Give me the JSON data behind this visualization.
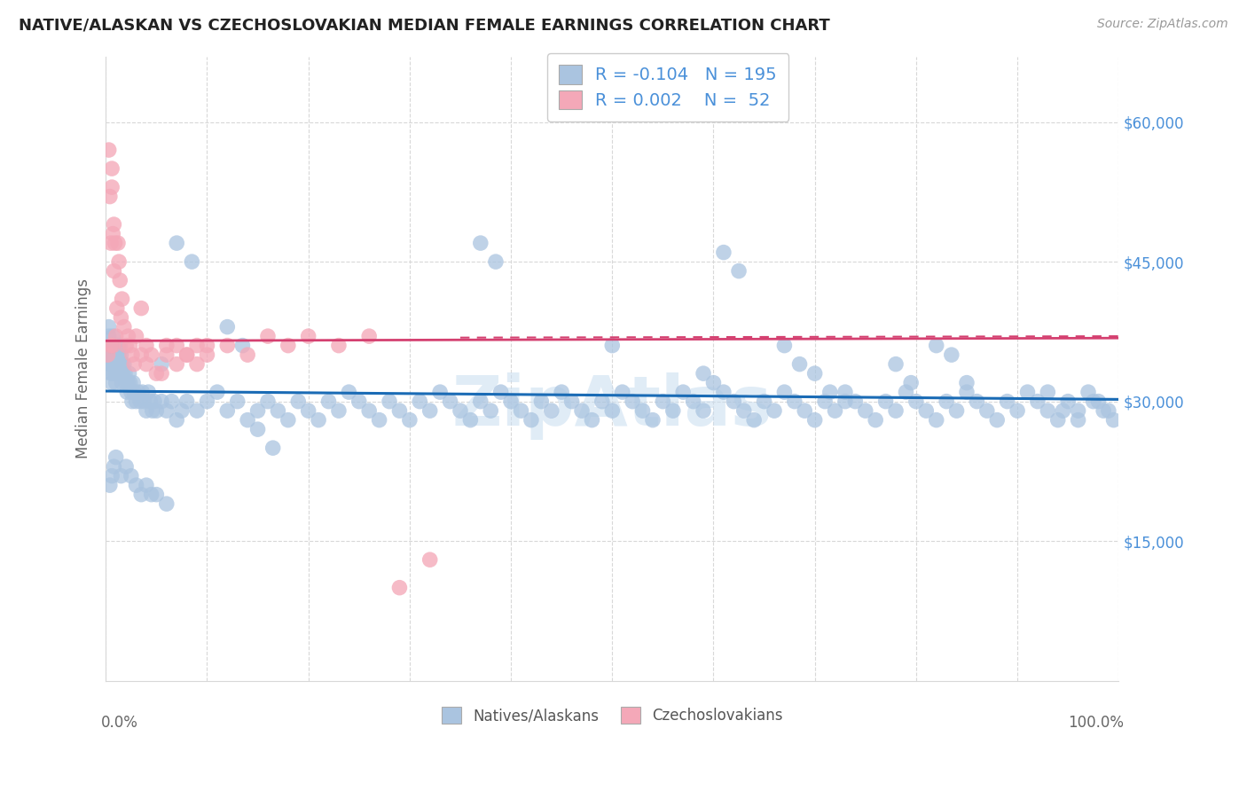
{
  "title": "NATIVE/ALASKAN VS CZECHOSLOVAKIAN MEDIAN FEMALE EARNINGS CORRELATION CHART",
  "source": "Source: ZipAtlas.com",
  "ylabel": "Median Female Earnings",
  "y_ticks": [
    15000,
    30000,
    45000,
    60000
  ],
  "y_tick_labels": [
    "$15,000",
    "$30,000",
    "$45,000",
    "$60,000"
  ],
  "y_min": 0,
  "y_max": 67000,
  "x_min": 0.0,
  "x_max": 1.0,
  "blue_R": "-0.104",
  "blue_N": "195",
  "pink_R": "0.002",
  "pink_N": "52",
  "blue_scatter_color": "#aac4e0",
  "pink_scatter_color": "#f4a8b8",
  "blue_line_color": "#1a6bb5",
  "pink_line_color": "#d44070",
  "legend_label_blue": "Natives/Alaskans",
  "legend_label_pink": "Czechoslovakians",
  "background_color": "#ffffff",
  "grid_color": "#d8d8d8",
  "title_color": "#222222",
  "axis_label_color": "#4a90d9",
  "watermark": "ZipAtlas",
  "watermark_color": "#c8ddf0",
  "title_fontsize": 13,
  "source_fontsize": 10,
  "tick_label_fontsize": 12,
  "legend_fontsize": 14,
  "blue_x": [
    0.003,
    0.003,
    0.004,
    0.004,
    0.005,
    0.005,
    0.005,
    0.006,
    0.006,
    0.007,
    0.007,
    0.007,
    0.008,
    0.008,
    0.009,
    0.009,
    0.01,
    0.01,
    0.01,
    0.011,
    0.011,
    0.012,
    0.012,
    0.013,
    0.013,
    0.014,
    0.014,
    0.015,
    0.015,
    0.016,
    0.016,
    0.017,
    0.018,
    0.019,
    0.02,
    0.021,
    0.022,
    0.023,
    0.024,
    0.025,
    0.026,
    0.027,
    0.028,
    0.03,
    0.032,
    0.034,
    0.036,
    0.038,
    0.04,
    0.042,
    0.044,
    0.046,
    0.048,
    0.05,
    0.055,
    0.06,
    0.065,
    0.07,
    0.075,
    0.08,
    0.09,
    0.1,
    0.11,
    0.12,
    0.13,
    0.14,
    0.15,
    0.16,
    0.17,
    0.18,
    0.19,
    0.2,
    0.21,
    0.22,
    0.23,
    0.24,
    0.25,
    0.26,
    0.27,
    0.28,
    0.29,
    0.3,
    0.31,
    0.32,
    0.33,
    0.34,
    0.35,
    0.36,
    0.37,
    0.38,
    0.39,
    0.4,
    0.41,
    0.42,
    0.43,
    0.44,
    0.45,
    0.46,
    0.47,
    0.48,
    0.49,
    0.5,
    0.51,
    0.52,
    0.53,
    0.54,
    0.55,
    0.56,
    0.57,
    0.58,
    0.59,
    0.6,
    0.61,
    0.62,
    0.63,
    0.64,
    0.65,
    0.66,
    0.67,
    0.68,
    0.69,
    0.7,
    0.71,
    0.72,
    0.73,
    0.74,
    0.75,
    0.76,
    0.77,
    0.78,
    0.79,
    0.8,
    0.81,
    0.82,
    0.83,
    0.84,
    0.85,
    0.86,
    0.87,
    0.88,
    0.89,
    0.9,
    0.91,
    0.92,
    0.93,
    0.94,
    0.95,
    0.96,
    0.97,
    0.98,
    0.99,
    0.995,
    0.61,
    0.625,
    0.5,
    0.59,
    0.37,
    0.385,
    0.78,
    0.795,
    0.82,
    0.835,
    0.85,
    0.93,
    0.945,
    0.96,
    0.975,
    0.985,
    0.12,
    0.135,
    0.07,
    0.085,
    0.055,
    0.15,
    0.165,
    0.05,
    0.06,
    0.04,
    0.045,
    0.035,
    0.025,
    0.03,
    0.02,
    0.015,
    0.01,
    0.008,
    0.006,
    0.004,
    0.003,
    0.003,
    0.67,
    0.685,
    0.7,
    0.715,
    0.73
  ],
  "blue_y": [
    37000,
    35000,
    34000,
    36000,
    33000,
    35000,
    36000,
    32000,
    34000,
    33000,
    35000,
    37000,
    34000,
    36000,
    33000,
    35000,
    32000,
    34000,
    36000,
    33000,
    35000,
    34000,
    36000,
    33000,
    35000,
    34000,
    36000,
    33000,
    35000,
    34000,
    32000,
    33000,
    34000,
    33000,
    32000,
    31000,
    32000,
    33000,
    32000,
    31000,
    30000,
    32000,
    31000,
    30000,
    31000,
    30000,
    31000,
    30000,
    29000,
    31000,
    30000,
    29000,
    30000,
    29000,
    30000,
    29000,
    30000,
    28000,
    29000,
    30000,
    29000,
    30000,
    31000,
    29000,
    30000,
    28000,
    29000,
    30000,
    29000,
    28000,
    30000,
    29000,
    28000,
    30000,
    29000,
    31000,
    30000,
    29000,
    28000,
    30000,
    29000,
    28000,
    30000,
    29000,
    31000,
    30000,
    29000,
    28000,
    30000,
    29000,
    31000,
    30000,
    29000,
    28000,
    30000,
    29000,
    31000,
    30000,
    29000,
    28000,
    30000,
    29000,
    31000,
    30000,
    29000,
    28000,
    30000,
    29000,
    31000,
    30000,
    29000,
    32000,
    31000,
    30000,
    29000,
    28000,
    30000,
    29000,
    31000,
    30000,
    29000,
    28000,
    30000,
    29000,
    31000,
    30000,
    29000,
    28000,
    30000,
    29000,
    31000,
    30000,
    29000,
    28000,
    30000,
    29000,
    31000,
    30000,
    29000,
    28000,
    30000,
    29000,
    31000,
    30000,
    29000,
    28000,
    30000,
    29000,
    31000,
    30000,
    29000,
    28000,
    46000,
    44000,
    36000,
    33000,
    47000,
    45000,
    34000,
    32000,
    36000,
    35000,
    32000,
    31000,
    29000,
    28000,
    30000,
    29000,
    38000,
    36000,
    47000,
    45000,
    34000,
    27000,
    25000,
    20000,
    19000,
    21000,
    20000,
    20000,
    22000,
    21000,
    23000,
    22000,
    24000,
    23000,
    22000,
    21000,
    38000,
    36000,
    36000,
    34000,
    33000,
    31000,
    30000
  ],
  "pink_x": [
    0.002,
    0.003,
    0.004,
    0.005,
    0.006,
    0.007,
    0.008,
    0.009,
    0.01,
    0.011,
    0.012,
    0.013,
    0.014,
    0.015,
    0.016,
    0.018,
    0.02,
    0.022,
    0.024,
    0.026,
    0.028,
    0.03,
    0.035,
    0.04,
    0.045,
    0.05,
    0.06,
    0.07,
    0.08,
    0.09,
    0.1,
    0.12,
    0.14,
    0.16,
    0.18,
    0.2,
    0.23,
    0.26,
    0.29,
    0.32,
    0.035,
    0.04,
    0.055,
    0.06,
    0.07,
    0.08,
    0.09,
    0.1,
    0.005,
    0.006,
    0.007,
    0.008
  ],
  "pink_y": [
    35000,
    57000,
    52000,
    47000,
    53000,
    36000,
    49000,
    47000,
    37000,
    40000,
    47000,
    45000,
    43000,
    39000,
    41000,
    38000,
    36000,
    37000,
    36000,
    35000,
    34000,
    37000,
    35000,
    34000,
    35000,
    33000,
    36000,
    34000,
    35000,
    36000,
    35000,
    36000,
    35000,
    37000,
    36000,
    37000,
    36000,
    37000,
    10000,
    13000,
    40000,
    36000,
    33000,
    35000,
    36000,
    35000,
    34000,
    36000,
    36000,
    55000,
    48000,
    44000
  ]
}
